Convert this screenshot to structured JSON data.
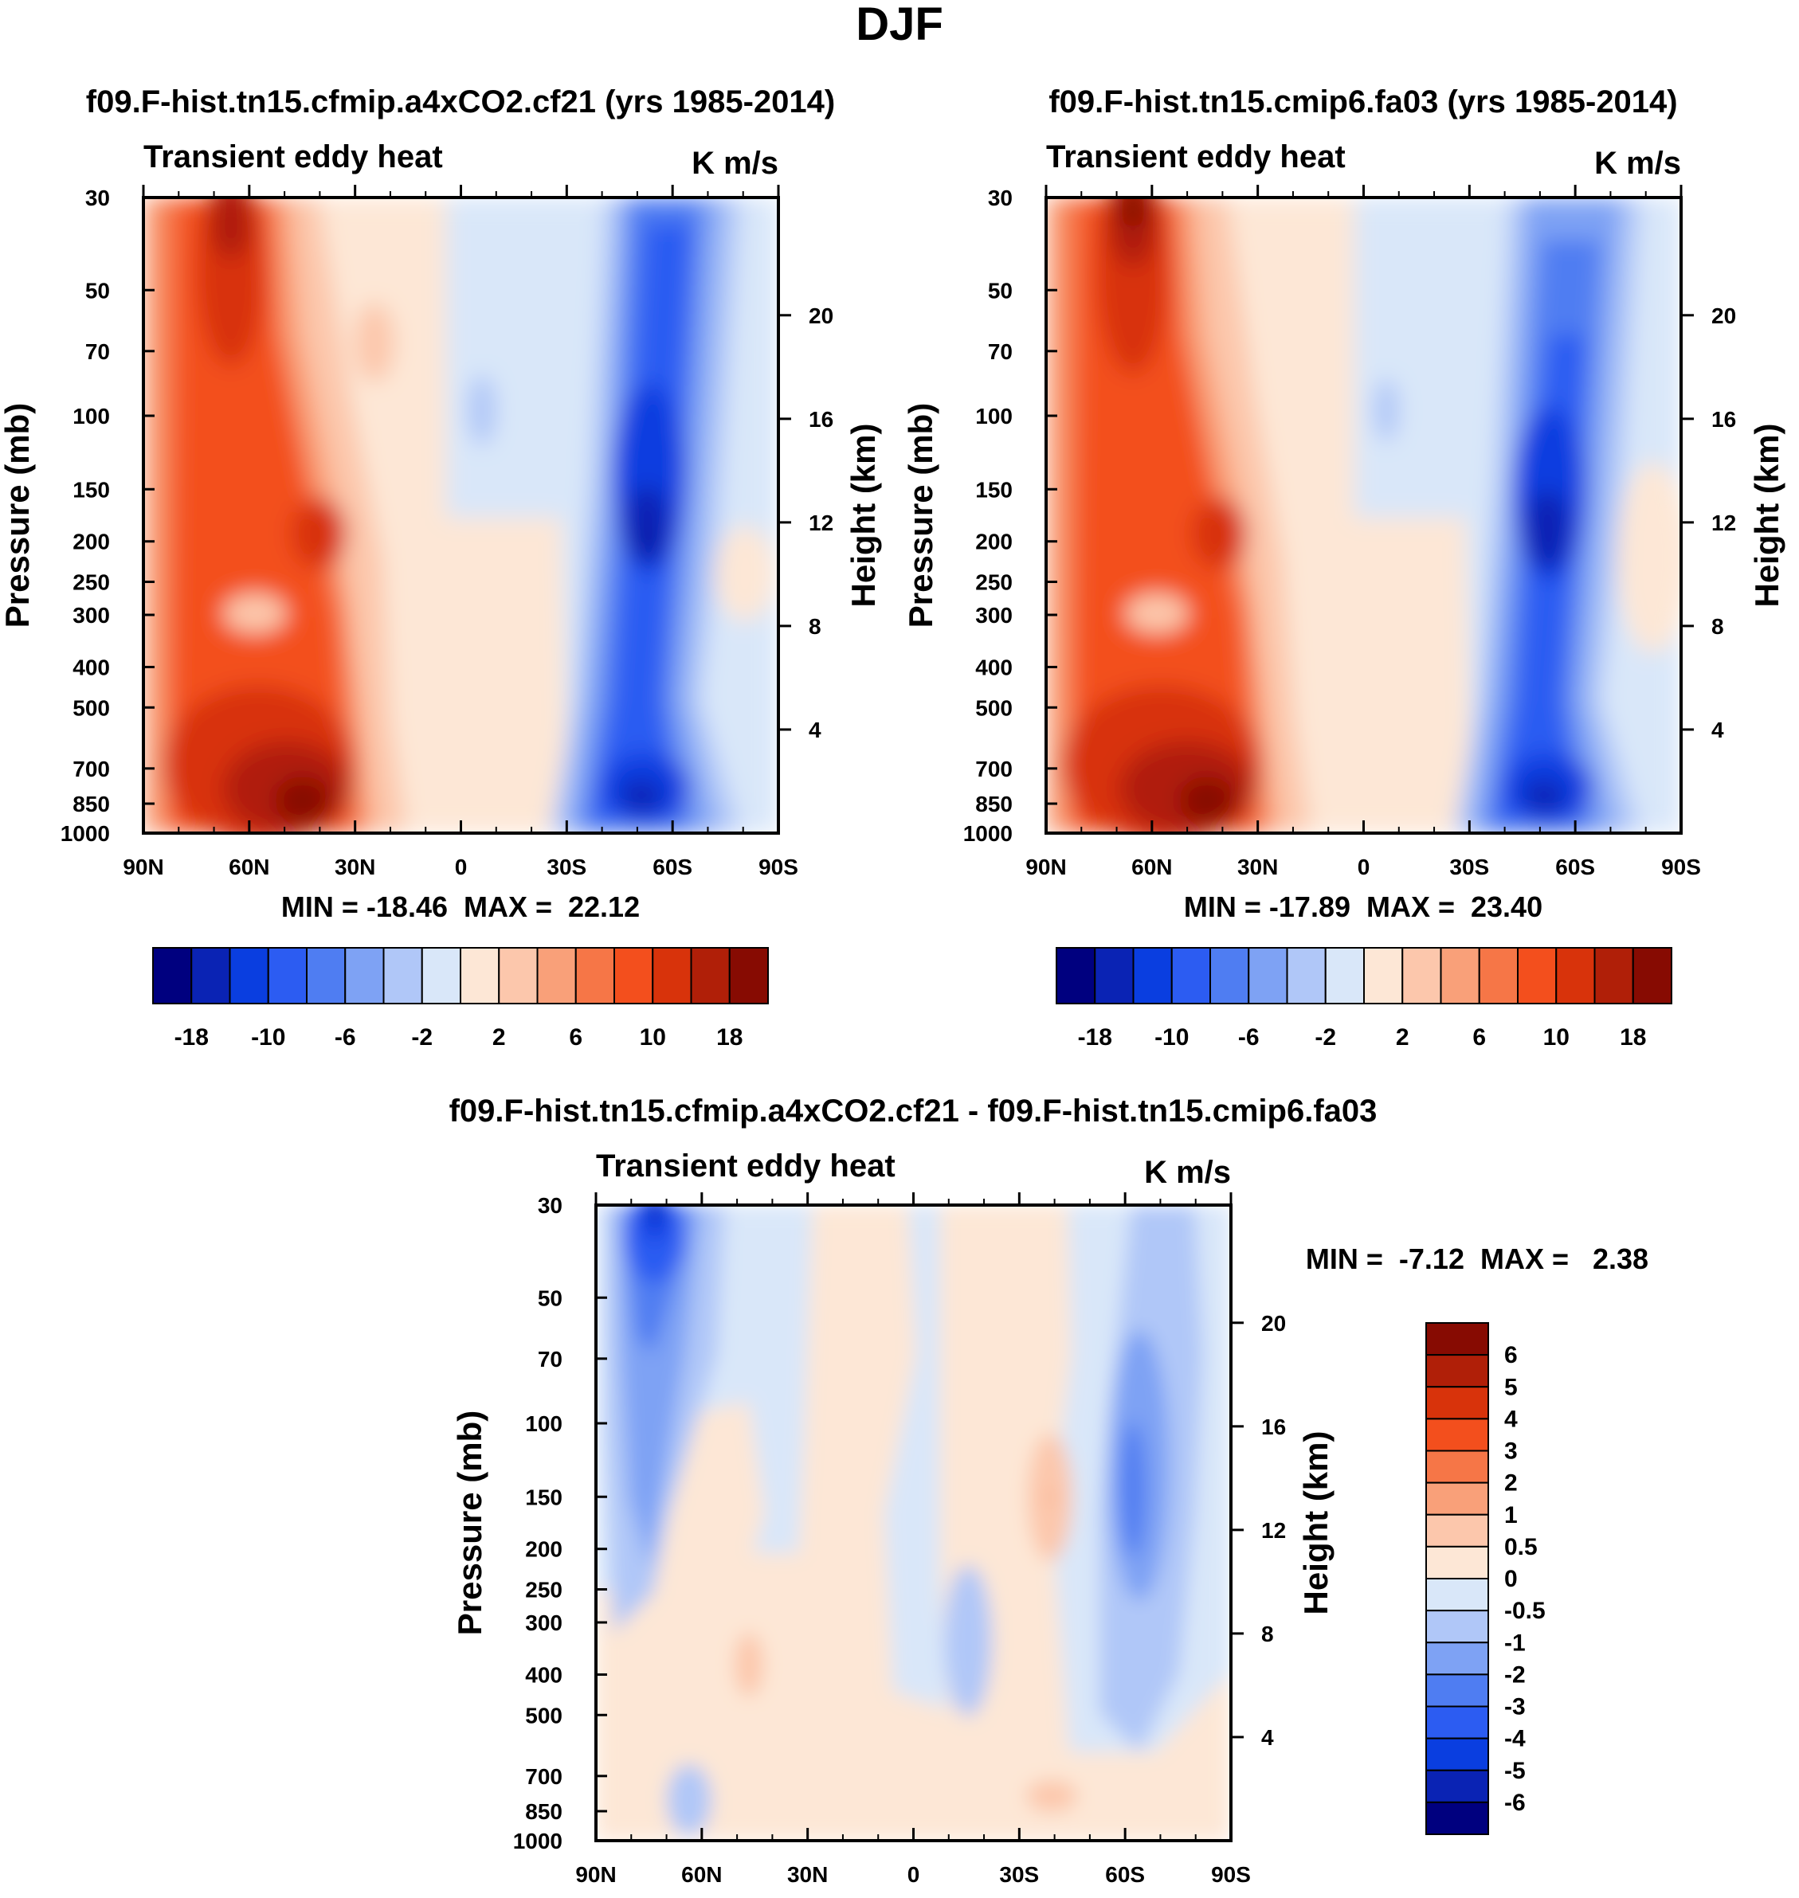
{
  "figure": {
    "title": "DJF",
    "left_unit": "Pressure (mb)",
    "right_unit": "Height (km)"
  },
  "chart_data": [
    {
      "type": "heatmap",
      "title": "f09.F-hist.tn15.cfmip.a4xCO2.cf21 (yrs 1985-2014)",
      "subtitle_left": "Transient eddy heat",
      "subtitle_right": "K m/s",
      "xlabel": "",
      "ylabel": "Pressure (mb)",
      "ylabel_right": "Height (km)",
      "x_ticks": [
        "90N",
        "60N",
        "30N",
        "0",
        "30S",
        "60S",
        "90S"
      ],
      "x_range": [
        90,
        -90
      ],
      "y_ticks": [
        30,
        50,
        70,
        100,
        150,
        200,
        250,
        300,
        400,
        500,
        700,
        850,
        1000
      ],
      "y_range": [
        1000,
        30
      ],
      "y_scale": "log",
      "height_ticks": [
        20,
        16,
        12,
        8,
        4
      ],
      "stats": "MIN = -18.46  MAX =  22.12",
      "colorbar_labels": [
        "-18",
        "-10",
        "-6",
        "-2",
        "2",
        "6",
        "10",
        "18"
      ],
      "features": [
        {
          "lat": 65,
          "p": 40,
          "value": 18
        },
        {
          "lat": 45,
          "p": 900,
          "value": 22
        },
        {
          "lat": 40,
          "p": 200,
          "value": 14
        },
        {
          "lat": -52,
          "p": 200,
          "value": -18
        },
        {
          "lat": -52,
          "p": 850,
          "value": -14
        }
      ]
    },
    {
      "type": "heatmap",
      "title": "f09.F-hist.tn15.cmip6.fa03 (yrs 1985-2014)",
      "subtitle_left": "Transient eddy heat",
      "subtitle_right": "K m/s",
      "xlabel": "",
      "ylabel": "Pressure (mb)",
      "ylabel_right": "Height (km)",
      "x_ticks": [
        "90N",
        "60N",
        "30N",
        "0",
        "30S",
        "60S",
        "90S"
      ],
      "x_range": [
        90,
        -90
      ],
      "y_ticks": [
        30,
        50,
        70,
        100,
        150,
        200,
        250,
        300,
        400,
        500,
        700,
        850,
        1000
      ],
      "y_range": [
        1000,
        30
      ],
      "y_scale": "log",
      "height_ticks": [
        20,
        16,
        12,
        8,
        4
      ],
      "stats": "MIN = -17.89  MAX =  23.40",
      "colorbar_labels": [
        "-18",
        "-10",
        "-6",
        "-2",
        "2",
        "6",
        "10",
        "18"
      ],
      "features": [
        {
          "lat": 67,
          "p": 35,
          "value": 22
        },
        {
          "lat": 42,
          "p": 880,
          "value": 23
        },
        {
          "lat": 38,
          "p": 200,
          "value": 14
        },
        {
          "lat": -52,
          "p": 200,
          "value": -17
        },
        {
          "lat": -52,
          "p": 850,
          "value": -14
        }
      ]
    },
    {
      "type": "heatmap",
      "title": "f09.F-hist.tn15.cfmip.a4xCO2.cf21 - f09.F-hist.tn15.cmip6.fa03",
      "subtitle_left": "Transient eddy heat",
      "subtitle_right": "K m/s",
      "xlabel": "",
      "ylabel": "Pressure (mb)",
      "ylabel_right": "Height (km)",
      "x_ticks": [
        "90N",
        "60N",
        "30N",
        "0",
        "30S",
        "60S",
        "90S"
      ],
      "x_range": [
        90,
        -90
      ],
      "y_ticks": [
        30,
        50,
        70,
        100,
        150,
        200,
        250,
        300,
        400,
        500,
        700,
        850,
        1000
      ],
      "y_range": [
        1000,
        30
      ],
      "y_scale": "log",
      "height_ticks": [
        20,
        16,
        12,
        8,
        4
      ],
      "stats": "MIN =  -7.12  MAX =   2.38",
      "colorbar_labels": [
        "6",
        "5",
        "4",
        "3",
        "2",
        "1",
        "0.5",
        "0",
        "-0.5",
        "-1",
        "-2",
        "-3",
        "-4",
        "-5",
        "-6"
      ],
      "features": [
        {
          "lat": 75,
          "p": 35,
          "value": -6
        },
        {
          "lat": 73,
          "p": 120,
          "value": -2
        },
        {
          "lat": -62,
          "p": 150,
          "value": -3
        },
        {
          "lat": -40,
          "p": 160,
          "value": 1
        },
        {
          "lat": 60,
          "p": 900,
          "value": -1.5
        }
      ]
    }
  ],
  "colors": {
    "full_palette": [
      "#00007f",
      "#0a23b4",
      "#0a3ee0",
      "#2c5cf2",
      "#4f7df2",
      "#7ea2f4",
      "#b0c7f8",
      "#d9e7f9",
      "#fde7d6",
      "#fcc7ac",
      "#f9a079",
      "#f67647",
      "#f34f1d",
      "#d8330b",
      "#b01f08",
      "#870b02"
    ],
    "diff_palette": [
      "#870b02",
      "#b01f08",
      "#d8330b",
      "#f34f1d",
      "#f67647",
      "#f9a079",
      "#fcc7ac",
      "#fde7d6",
      "#d9e7f9",
      "#b0c7f8",
      "#7ea2f4",
      "#4f7df2",
      "#2c5cf2",
      "#0a3ee0",
      "#0a23b4",
      "#00007f"
    ]
  }
}
